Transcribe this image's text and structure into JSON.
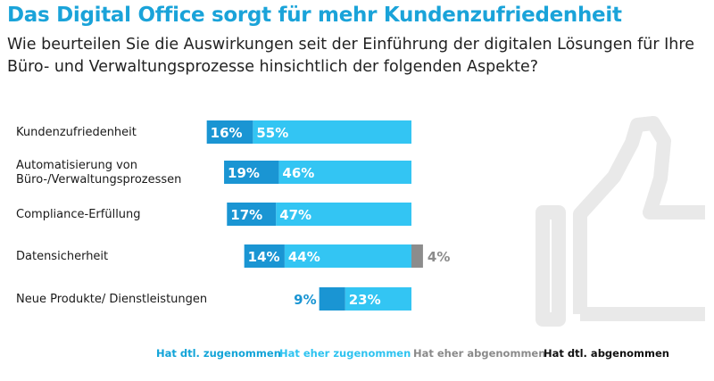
{
  "chart_data": {
    "type": "bar",
    "stacked": "diverging",
    "title": "Das Digital Office sorgt für mehr Kundenzufriedenheit",
    "subtitle": "Wie beurteilen Sie die Auswirkungen seit der Einführung der digitalen Lösungen für Ihre Büro- und Verwaltungsprozesse hinsichtlich der folgenden Aspekte?",
    "categories": [
      {
        "lines": [
          "Kundenzufriedenheit"
        ]
      },
      {
        "lines": [
          "Automatisierung von",
          "Büro-/Verwaltungsprozessen"
        ]
      },
      {
        "lines": [
          "Compliance-Erfüllung"
        ]
      },
      {
        "lines": [
          "Datensicherheit"
        ]
      },
      {
        "lines": [
          "Neue Produkte/ Dienstleistungen"
        ]
      }
    ],
    "series": [
      {
        "name": "Hat dtl. zugenommen",
        "color": "#1a95d3",
        "side": "positive",
        "values": [
          16,
          19,
          17,
          14,
          9
        ],
        "labels": [
          "16%",
          "19%",
          "17%",
          "14%",
          "9%"
        ]
      },
      {
        "name": "Hat eher zugenommen",
        "color": "#33c5f3",
        "side": "positive",
        "values": [
          55,
          46,
          47,
          44,
          23
        ],
        "labels": [
          "55%",
          "46%",
          "47%",
          "44%",
          "23%"
        ]
      },
      {
        "name": "Hat eher abgenommen",
        "color": "#8c8c8c",
        "side": "negative",
        "values": [
          0,
          0,
          0,
          4,
          0
        ],
        "labels": [
          "",
          "",
          "",
          "4%",
          ""
        ]
      },
      {
        "name": "Hat dtl. abgenommen",
        "color": "#111111",
        "side": "negative",
        "values": [
          0,
          0,
          0,
          0,
          0
        ],
        "labels": [
          "",
          "",
          "",
          "",
          ""
        ]
      }
    ],
    "legend": {
      "position": "bottom",
      "colors": [
        "#12a4d8",
        "#2ec3f0",
        "#8a8a8a",
        "#111111"
      ]
    }
  }
}
